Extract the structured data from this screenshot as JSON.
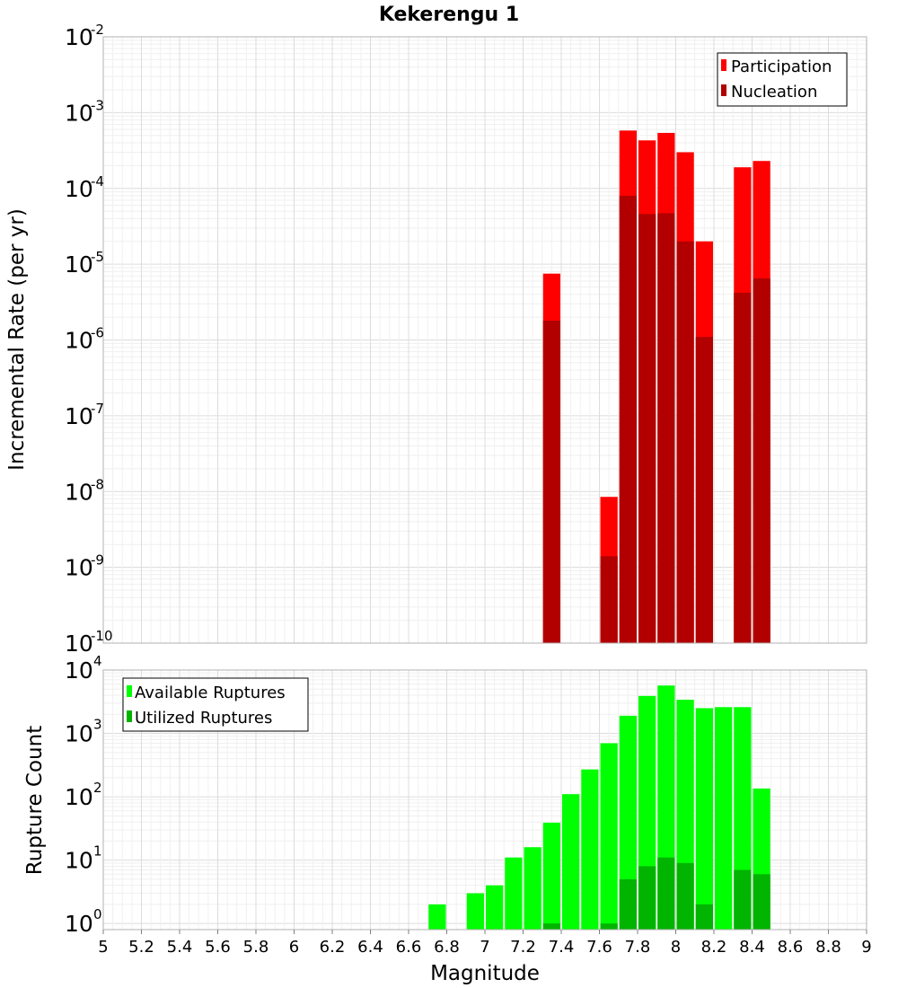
{
  "chart_data": [
    {
      "type": "bar",
      "title": "Kekerengu 1",
      "xlabel": "",
      "ylabel": "Incremental Rate (per yr)",
      "yscale": "log",
      "ylim": [
        1e-10,
        0.01
      ],
      "xlim": [
        5,
        9
      ],
      "ytick_labels": [
        {
          "base": "10",
          "exp": "-10"
        },
        {
          "base": "10",
          "exp": "-9"
        },
        {
          "base": "10",
          "exp": "-8"
        },
        {
          "base": "10",
          "exp": "-7"
        },
        {
          "base": "10",
          "exp": "-6"
        },
        {
          "base": "10",
          "exp": "-5"
        },
        {
          "base": "10",
          "exp": "-4"
        },
        {
          "base": "10",
          "exp": "-3"
        },
        {
          "base": "10",
          "exp": "-2"
        }
      ],
      "grid": true,
      "legend_position": "top-right",
      "x": [
        7.35,
        7.65,
        7.75,
        7.85,
        7.95,
        8.05,
        8.15,
        8.35,
        8.45
      ],
      "series": [
        {
          "name": "Participation",
          "color": "#ff0000",
          "values": [
            7.5e-06,
            8.5e-09,
            0.00058,
            0.00043,
            0.00054,
            0.0003,
            2e-05,
            0.00019,
            0.00023
          ]
        },
        {
          "name": "Nucleation",
          "color": "#b20000",
          "values": [
            1.8e-06,
            1.4e-09,
            8e-05,
            4.6e-05,
            4.7e-05,
            2e-05,
            1.1e-06,
            4.2e-06,
            6.5e-06
          ]
        }
      ]
    },
    {
      "type": "bar",
      "title": "",
      "xlabel": "Magnitude",
      "ylabel": "Rupture Count",
      "yscale": "log",
      "ylim": [
        0.8,
        10000
      ],
      "xlim": [
        5,
        9
      ],
      "xtick_labels": [
        "5",
        "5.2",
        "5.4",
        "5.6",
        "5.8",
        "6",
        "6.2",
        "6.4",
        "6.6",
        "6.8",
        "7",
        "7.2",
        "7.4",
        "7.6",
        "7.8",
        "8",
        "8.2",
        "8.4",
        "8.6",
        "8.8",
        "9"
      ],
      "ytick_labels": [
        {
          "base": "10",
          "exp": "0"
        },
        {
          "base": "10",
          "exp": "1"
        },
        {
          "base": "10",
          "exp": "2"
        },
        {
          "base": "10",
          "exp": "3"
        },
        {
          "base": "10",
          "exp": "4"
        }
      ],
      "grid": true,
      "legend_position": "top-left",
      "x": [
        6.75,
        6.95,
        7.05,
        7.15,
        7.25,
        7.35,
        7.45,
        7.55,
        7.65,
        7.75,
        7.85,
        7.95,
        8.05,
        8.15,
        8.25,
        8.35,
        8.45
      ],
      "series": [
        {
          "name": "Available Ruptures",
          "color": "#00ff00",
          "values": [
            2,
            3,
            4,
            11,
            16,
            39,
            110,
            270,
            700,
            1900,
            3900,
            5700,
            3400,
            2500,
            2600,
            2600,
            135
          ]
        },
        {
          "name": "Utilized Ruptures",
          "color": "#00b400",
          "values": [
            0,
            0,
            0,
            0,
            0,
            1,
            0,
            0,
            1,
            5,
            8,
            11,
            9,
            2,
            0,
            7,
            6
          ]
        }
      ]
    }
  ]
}
